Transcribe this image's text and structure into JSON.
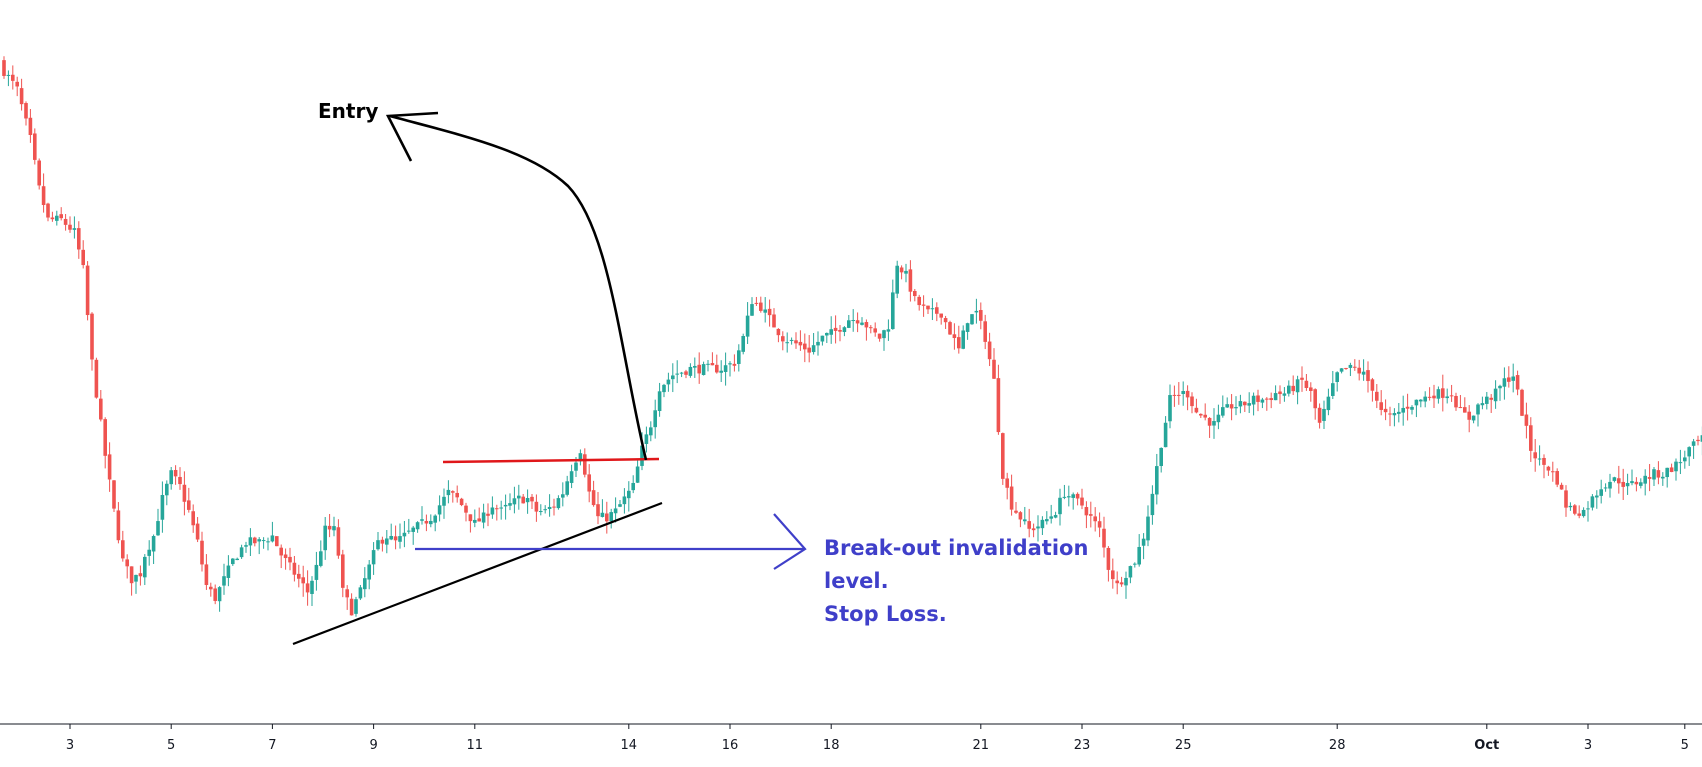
{
  "chart_data": {
    "type": "candlestick",
    "title": "",
    "xlabel": "",
    "ylabel": "",
    "grid": false,
    "legend": "none",
    "colors": {
      "up": "#26a69a",
      "down": "#ef5350",
      "axis": "#131722",
      "entry_arrow": "#000000",
      "trendline": "#000000",
      "resistance_line": "#e0171a",
      "invalidation": "#3f3fc9"
    },
    "x_ticks": [
      {
        "label": "3",
        "index": 15,
        "bold": false
      },
      {
        "label": "5",
        "index": 38,
        "bold": false
      },
      {
        "label": "7",
        "index": 61,
        "bold": false
      },
      {
        "label": "9",
        "index": 84,
        "bold": false
      },
      {
        "label": "11",
        "index": 107,
        "bold": false
      },
      {
        "label": "14",
        "index": 142,
        "bold": false
      },
      {
        "label": "16",
        "index": 165,
        "bold": false
      },
      {
        "label": "18",
        "index": 188,
        "bold": false
      },
      {
        "label": "21",
        "index": 222,
        "bold": false
      },
      {
        "label": "23",
        "index": 245,
        "bold": false
      },
      {
        "label": "25",
        "index": 268,
        "bold": false
      },
      {
        "label": "28",
        "index": 303,
        "bold": false
      },
      {
        "label": "Oct",
        "index": 337,
        "bold": true
      },
      {
        "label": "3",
        "index": 360,
        "bold": false
      },
      {
        "label": "5",
        "index": 382,
        "bold": false
      }
    ],
    "keypoints": [
      [
        0,
        95
      ],
      [
        3,
        92
      ],
      [
        6,
        84
      ],
      [
        8,
        76
      ],
      [
        10,
        71
      ],
      [
        13,
        71
      ],
      [
        16,
        69
      ],
      [
        18,
        63
      ],
      [
        20,
        48
      ],
      [
        23,
        33
      ],
      [
        25,
        24
      ],
      [
        27,
        16
      ],
      [
        29,
        13
      ],
      [
        31,
        14
      ],
      [
        32,
        17
      ],
      [
        34,
        20
      ],
      [
        36,
        26
      ],
      [
        38,
        30
      ],
      [
        40,
        28
      ],
      [
        42,
        24
      ],
      [
        44,
        19
      ],
      [
        46,
        12
      ],
      [
        48,
        10
      ],
      [
        50,
        13
      ],
      [
        52,
        16
      ],
      [
        55,
        19
      ],
      [
        58,
        19
      ],
      [
        61,
        20
      ],
      [
        63,
        17
      ],
      [
        65,
        15
      ],
      [
        67,
        13
      ],
      [
        69,
        11
      ],
      [
        71,
        15
      ],
      [
        73,
        21
      ],
      [
        75,
        21
      ],
      [
        76,
        17
      ],
      [
        77,
        11
      ],
      [
        79,
        8
      ],
      [
        81,
        11
      ],
      [
        83,
        15
      ],
      [
        85,
        19
      ],
      [
        87,
        20
      ],
      [
        89,
        19
      ],
      [
        91,
        20
      ],
      [
        93,
        21
      ],
      [
        95,
        22
      ],
      [
        97,
        23
      ],
      [
        99,
        25
      ],
      [
        101,
        27
      ],
      [
        103,
        26
      ],
      [
        105,
        24
      ],
      [
        107,
        22
      ],
      [
        109,
        23
      ],
      [
        111,
        25
      ],
      [
        113,
        24
      ],
      [
        115,
        25
      ],
      [
        117,
        26
      ],
      [
        119,
        26
      ],
      [
        121,
        24
      ],
      [
        123,
        24
      ],
      [
        125,
        25
      ],
      [
        127,
        27
      ],
      [
        129,
        31
      ],
      [
        131,
        34
      ],
      [
        133,
        27
      ],
      [
        135,
        23
      ],
      [
        137,
        23
      ],
      [
        139,
        24
      ],
      [
        141,
        26
      ],
      [
        143,
        28
      ],
      [
        145,
        34
      ],
      [
        147,
        38
      ],
      [
        149,
        44
      ],
      [
        152,
        46
      ],
      [
        156,
        47
      ],
      [
        160,
        47
      ],
      [
        163,
        47
      ],
      [
        166,
        48
      ],
      [
        168,
        52
      ],
      [
        170,
        58
      ],
      [
        172,
        57
      ],
      [
        174,
        55
      ],
      [
        177,
        52
      ],
      [
        180,
        51
      ],
      [
        183,
        50
      ],
      [
        186,
        52
      ],
      [
        189,
        53
      ],
      [
        192,
        55
      ],
      [
        195,
        55
      ],
      [
        197,
        53
      ],
      [
        199,
        52
      ],
      [
        201,
        54
      ],
      [
        203,
        64
      ],
      [
        205,
        62
      ],
      [
        207,
        58
      ],
      [
        210,
        56
      ],
      [
        213,
        56
      ],
      [
        215,
        53
      ],
      [
        217,
        50
      ],
      [
        219,
        55
      ],
      [
        221,
        56
      ],
      [
        223,
        52
      ],
      [
        225,
        45
      ],
      [
        227,
        30
      ],
      [
        229,
        25
      ],
      [
        231,
        23
      ],
      [
        233,
        21
      ],
      [
        236,
        22
      ],
      [
        239,
        24
      ],
      [
        241,
        27
      ],
      [
        243,
        26
      ],
      [
        245,
        25
      ],
      [
        247,
        23
      ],
      [
        249,
        21
      ],
      [
        251,
        15
      ],
      [
        253,
        12
      ],
      [
        255,
        14
      ],
      [
        257,
        16
      ],
      [
        259,
        20
      ],
      [
        261,
        27
      ],
      [
        263,
        35
      ],
      [
        265,
        42
      ],
      [
        267,
        43
      ],
      [
        269,
        43
      ],
      [
        271,
        40
      ],
      [
        273,
        39
      ],
      [
        275,
        38
      ],
      [
        277,
        40
      ],
      [
        279,
        41
      ],
      [
        281,
        41
      ],
      [
        284,
        42
      ],
      [
        287,
        42
      ],
      [
        289,
        43
      ],
      [
        291,
        43
      ],
      [
        293,
        44
      ],
      [
        295,
        45
      ],
      [
        297,
        43
      ],
      [
        299,
        38
      ],
      [
        301,
        42
      ],
      [
        303,
        46
      ],
      [
        305,
        47
      ],
      [
        307,
        47
      ],
      [
        309,
        46
      ],
      [
        311,
        44
      ],
      [
        313,
        40
      ],
      [
        315,
        39
      ],
      [
        317,
        40
      ],
      [
        319,
        41
      ],
      [
        322,
        42
      ],
      [
        325,
        43
      ],
      [
        327,
        43
      ],
      [
        329,
        43
      ],
      [
        331,
        40
      ],
      [
        333,
        39
      ],
      [
        335,
        41
      ],
      [
        337,
        42
      ],
      [
        339,
        43
      ],
      [
        341,
        45
      ],
      [
        343,
        46
      ],
      [
        345,
        40
      ],
      [
        347,
        34
      ],
      [
        349,
        32
      ],
      [
        351,
        31
      ],
      [
        353,
        29
      ],
      [
        355,
        25
      ],
      [
        357,
        24
      ],
      [
        359,
        24
      ],
      [
        361,
        26
      ],
      [
        363,
        28
      ],
      [
        365,
        29
      ],
      [
        367,
        29
      ],
      [
        369,
        28
      ],
      [
        372,
        29
      ],
      [
        375,
        30
      ],
      [
        377,
        30
      ],
      [
        379,
        31
      ],
      [
        381,
        32
      ],
      [
        383,
        34
      ],
      [
        385,
        35
      ],
      [
        387,
        36
      ]
    ]
  },
  "annotations": {
    "entry_label": "Entry",
    "invalidation_lines": [
      "Break-out invalidation",
      "level.",
      "Stop Loss."
    ]
  }
}
